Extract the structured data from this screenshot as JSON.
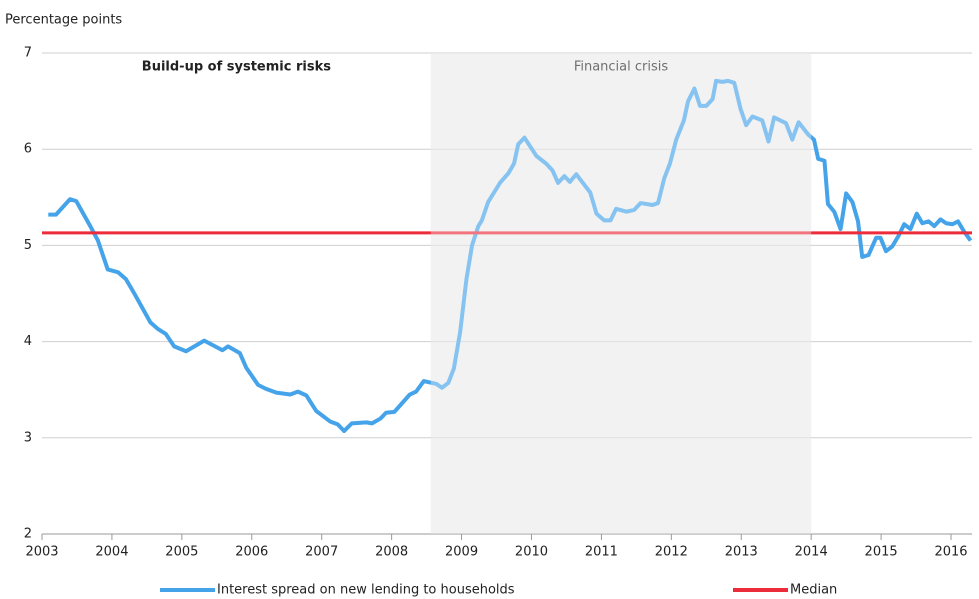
{
  "chart_data": {
    "type": "line",
    "y_label": "Percentage points",
    "xlim": [
      2003,
      2016.3
    ],
    "xticks": [
      2003,
      2004,
      2005,
      2006,
      2007,
      2008,
      2009,
      2010,
      2011,
      2012,
      2013,
      2014,
      2015,
      2016
    ],
    "ylim": [
      2,
      7
    ],
    "yticks": [
      2,
      3,
      4,
      5,
      6,
      7
    ],
    "grid": true,
    "annotations": [
      {
        "text": "Build-up of systemic risks",
        "x": [
          2003,
          2008.56
        ]
      },
      {
        "text": "Financial crisis",
        "x": [
          2008.56,
          2014.0
        ]
      }
    ],
    "series": [
      {
        "name": "Interest spread on new lending to households",
        "color": "#45a3ea",
        "x": [
          2003.09,
          2003.2,
          2003.4,
          2003.49,
          2003.69,
          2003.8,
          2003.94,
          2004.09,
          2004.2,
          2004.32,
          2004.55,
          2004.66,
          2004.77,
          2004.89,
          2005.06,
          2005.32,
          2005.58,
          2005.66,
          2005.83,
          2005.92,
          2006.09,
          2006.2,
          2006.35,
          2006.55,
          2006.66,
          2006.78,
          2006.92,
          2007.12,
          2007.23,
          2007.32,
          2007.43,
          2007.64,
          2007.72,
          2007.84,
          2007.92,
          2008.04,
          2008.26,
          2008.35,
          2008.46,
          2008.64,
          2008.72,
          2008.81,
          2008.89,
          2008.98,
          2009.07,
          2009.15,
          2009.24,
          2009.29,
          2009.38,
          2009.55,
          2009.67,
          2009.75,
          2009.81,
          2009.9,
          2010.07,
          2010.21,
          2010.3,
          2010.38,
          2010.47,
          2010.55,
          2010.64,
          2010.84,
          2010.93,
          2011.04,
          2011.13,
          2011.21,
          2011.36,
          2011.47,
          2011.56,
          2011.73,
          2011.81,
          2011.9,
          2011.98,
          2012.07,
          2012.18,
          2012.24,
          2012.33,
          2012.41,
          2012.5,
          2012.59,
          2012.64,
          2012.73,
          2012.81,
          2012.9,
          2012.99,
          2013.07,
          2013.16,
          2013.3,
          2013.39,
          2013.47,
          2013.64,
          2013.73,
          2013.82,
          2013.96,
          2014.04,
          2014.1,
          2014.19,
          2014.24,
          2014.33,
          2014.42,
          2014.5,
          2014.59,
          2014.67,
          2014.73,
          2014.82,
          2014.93,
          2014.99,
          2015.07,
          2015.16,
          2015.25,
          2015.33,
          2015.42,
          2015.51,
          2015.59,
          2015.68,
          2015.76,
          2015.85,
          2015.93,
          2016.02,
          2016.1,
          2016.19,
          2016.28
        ],
        "values": [
          5.32,
          5.32,
          5.48,
          5.46,
          5.2,
          5.05,
          4.75,
          4.72,
          4.65,
          4.5,
          4.2,
          4.13,
          4.08,
          3.95,
          3.9,
          4.01,
          3.91,
          3.95,
          3.88,
          3.73,
          3.55,
          3.51,
          3.47,
          3.45,
          3.48,
          3.44,
          3.28,
          3.17,
          3.14,
          3.07,
          3.15,
          3.16,
          3.15,
          3.2,
          3.26,
          3.27,
          3.45,
          3.48,
          3.59,
          3.56,
          3.52,
          3.57,
          3.72,
          4.1,
          4.65,
          5.0,
          5.2,
          5.26,
          5.45,
          5.65,
          5.75,
          5.85,
          6.05,
          6.12,
          5.93,
          5.85,
          5.78,
          5.65,
          5.72,
          5.66,
          5.74,
          5.55,
          5.33,
          5.26,
          5.26,
          5.38,
          5.35,
          5.37,
          5.44,
          5.42,
          5.44,
          5.7,
          5.85,
          6.1,
          6.3,
          6.5,
          6.63,
          6.45,
          6.45,
          6.52,
          6.71,
          6.7,
          6.71,
          6.69,
          6.42,
          6.25,
          6.34,
          6.3,
          6.08,
          6.33,
          6.27,
          6.1,
          6.28,
          6.15,
          6.1,
          5.9,
          5.88,
          5.43,
          5.35,
          5.17,
          5.54,
          5.45,
          5.25,
          4.88,
          4.9,
          5.08,
          5.08,
          4.94,
          4.99,
          5.1,
          5.22,
          5.17,
          5.33,
          5.23,
          5.25,
          5.2,
          5.27,
          5.23,
          5.22,
          5.25,
          5.14,
          5.05
        ]
      }
    ],
    "median": {
      "name": "Median",
      "value": 5.13,
      "color": "#ec2c3a"
    }
  }
}
